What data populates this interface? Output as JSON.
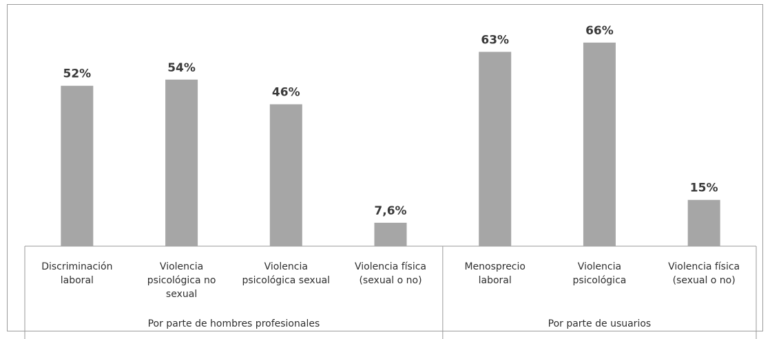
{
  "chart_data": {
    "type": "bar",
    "color": "#a6a6a6",
    "value_labels": [
      "52%",
      "54%",
      "46%",
      "7,6%",
      "63%",
      "66%",
      "15%"
    ],
    "values": [
      52,
      54,
      46,
      7.6,
      63,
      66,
      15
    ],
    "ylim": [
      0,
      70
    ],
    "grid": false,
    "legend": "none",
    "categories": [
      [
        "Discriminación",
        "laboral"
      ],
      [
        "Violencia",
        "psicológica no",
        "sexual"
      ],
      [
        "Violencia",
        "psicológica sexual"
      ],
      [
        "Violencia física",
        "(sexual o no)"
      ],
      [
        "Menosprecio",
        "laboral"
      ],
      [
        "Violencia",
        "psicológica"
      ],
      [
        "Violencia física",
        "(sexual o no)"
      ]
    ],
    "groups": [
      {
        "label": "Por parte de hombres profesionales",
        "count": 4
      },
      {
        "label": "Por parte de usuarios",
        "count": 3
      }
    ]
  }
}
